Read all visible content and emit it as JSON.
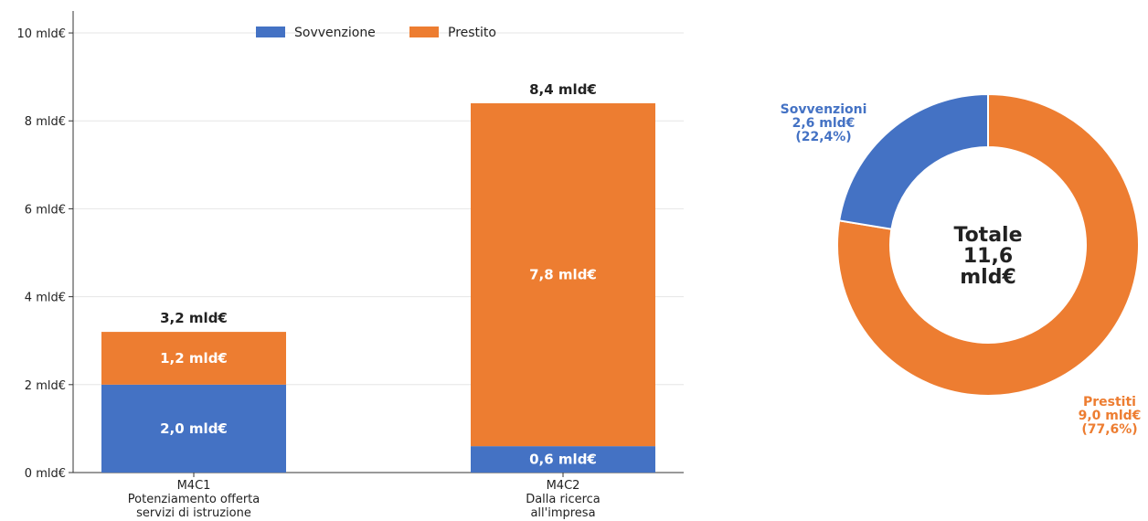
{
  "chart_data": [
    {
      "type": "bar",
      "stacked": true,
      "categories": [
        [
          "M4C1",
          "Potenziamento offerta",
          "servizi di istruzione"
        ],
        [
          "M4C2",
          "Dalla ricerca",
          "all'impresa"
        ]
      ],
      "series": [
        {
          "name": "Sovvenzione",
          "color": "#4472C4",
          "values": [
            2.0,
            0.6
          ],
          "labels": [
            "2,0 mld€",
            "0,6 mld€"
          ]
        },
        {
          "name": "Prestito",
          "color": "#ED7D31",
          "values": [
            1.2,
            7.8
          ],
          "labels": [
            "1,2 mld€",
            "7,8 mld€"
          ]
        }
      ],
      "totals": [
        "3,2 mld€",
        "8,4 mld€"
      ],
      "ylim": [
        0,
        10.5
      ],
      "yticks": [
        0,
        2,
        4,
        6,
        8,
        10
      ],
      "ytick_labels": [
        "0 mld€",
        "2 mld€",
        "4 mld€",
        "6 mld€",
        "8 mld€",
        "10 mld€"
      ],
      "grid": true,
      "legend": "top-center"
    },
    {
      "type": "pie",
      "donut": true,
      "center_label": [
        "Totale",
        "11,6",
        "mld€"
      ],
      "slices": [
        {
          "name": "Prestiti",
          "value": 9.0,
          "color": "#ED7D31",
          "label": [
            "Prestiti",
            "9,0 mld€",
            "(77,6%)"
          ]
        },
        {
          "name": "Sovvenzioni",
          "value": 2.6,
          "color": "#4472C4",
          "label": [
            "Sovvenzioni",
            "2,6 mld€",
            "(22,4%)"
          ]
        }
      ]
    }
  ]
}
